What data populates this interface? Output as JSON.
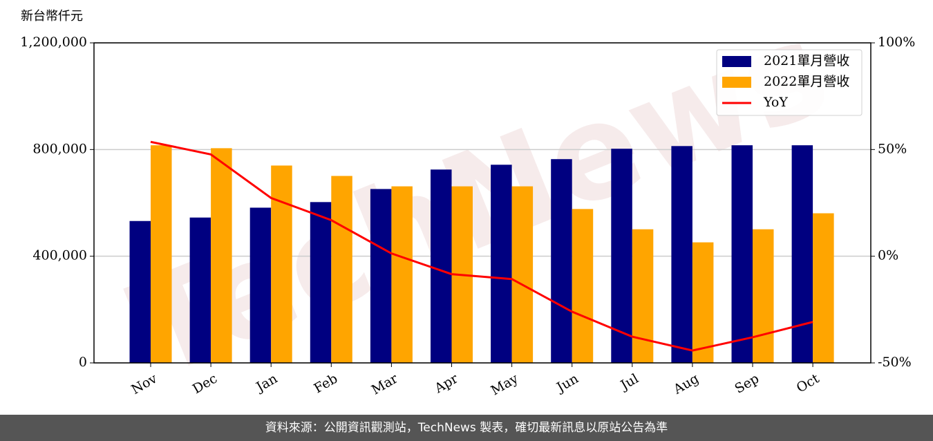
{
  "chart_data": {
    "type": "bar",
    "y_label": "新台幣仟元",
    "watermark": "TechNews",
    "categories": [
      "Nov",
      "Dec",
      "Jan",
      "Feb",
      "Mar",
      "Apr",
      "May",
      "Jun",
      "Jul",
      "Aug",
      "Sep",
      "Oct"
    ],
    "series": [
      {
        "name": "2021單月營收",
        "color": "#000080",
        "type": "bar",
        "values": [
          532000,
          545000,
          582000,
          603000,
          652000,
          725000,
          743000,
          764000,
          803000,
          813000,
          816000,
          816000
        ]
      },
      {
        "name": "2022單月營收",
        "color": "#ffa500",
        "type": "bar",
        "values": [
          816000,
          805000,
          740000,
          701000,
          662000,
          662000,
          662000,
          577000,
          501000,
          452000,
          501000,
          561000
        ]
      },
      {
        "name": "YoY",
        "color": "#ff0000",
        "type": "line",
        "axis": "y2",
        "values": [
          53.6,
          47.7,
          27.3,
          16.9,
          1.3,
          -8.4,
          -10.7,
          -26,
          -37.7,
          -44.2,
          -38,
          -30.8
        ]
      }
    ],
    "ylim": [
      0,
      1200000
    ],
    "yticks": [
      0,
      {
        "value": 400000,
        "label": "400,000"
      },
      {
        "value": 800000,
        "label": "800,000"
      },
      {
        "value": 1200000,
        "label": "1,200,000"
      }
    ],
    "y2lim": [
      -50,
      100
    ],
    "y2ticks": [
      {
        "value": -50,
        "label": "-50%"
      },
      {
        "value": 0,
        "label": "0%"
      },
      {
        "value": 50,
        "label": "50%"
      },
      {
        "value": 100,
        "label": "100%"
      }
    ],
    "grid": true,
    "legend": "upper right"
  },
  "footer": "資料來源：公開資訊觀測站，TechNews 製表，確切最新訊息以原站公告為準"
}
